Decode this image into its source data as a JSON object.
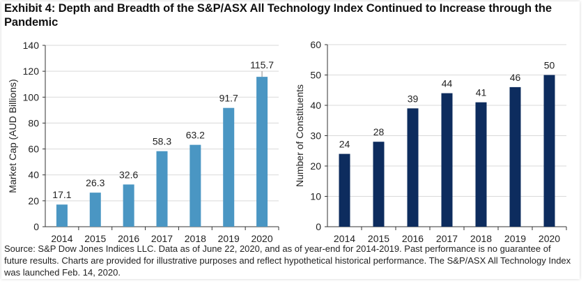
{
  "title": "Exhibit 4: Depth and Breadth of the S&P/ASX All Technology Index Continued to Increase through the Pandemic",
  "footer": "Source: S&P Dow Jones Indices LLC. Data as of June 22, 2020, and as of year-end for 2014-2019. Past performance is no guarantee of future results. Charts are provided for illustrative purposes and reflect hypothetical historical performance. The S&P/ASX All Technology Index was launched Feb. 14, 2020.",
  "chart_data": [
    {
      "type": "bar",
      "title": "",
      "xlabel": "",
      "ylabel": "Market Cap (AUD Billions)",
      "categories": [
        "2014",
        "2015",
        "2016",
        "2017",
        "2018",
        "2019",
        "2020"
      ],
      "values": [
        17.1,
        26.3,
        32.6,
        58.3,
        63.2,
        91.7,
        115.7
      ],
      "data_labels": [
        "17.1",
        "26.3",
        "32.6",
        "58.3",
        "63.2",
        "91.7",
        "115.7"
      ],
      "ylim": [
        0,
        140
      ],
      "yticks": [
        0,
        20,
        40,
        60,
        80,
        100,
        120,
        140
      ],
      "grid": true,
      "color": "#4a96c3"
    },
    {
      "type": "bar",
      "title": "",
      "xlabel": "",
      "ylabel": "Number of Constituents",
      "categories": [
        "2014",
        "2015",
        "2016",
        "2017",
        "2018",
        "2019",
        "2020"
      ],
      "values": [
        24,
        28,
        39,
        44,
        41,
        46,
        50
      ],
      "data_labels": [
        "24",
        "28",
        "39",
        "44",
        "41",
        "46",
        "50"
      ],
      "ylim": [
        0,
        60
      ],
      "yticks": [
        0,
        10,
        20,
        30,
        40,
        50,
        60
      ],
      "grid": true,
      "color": "#0d2c5e"
    }
  ]
}
